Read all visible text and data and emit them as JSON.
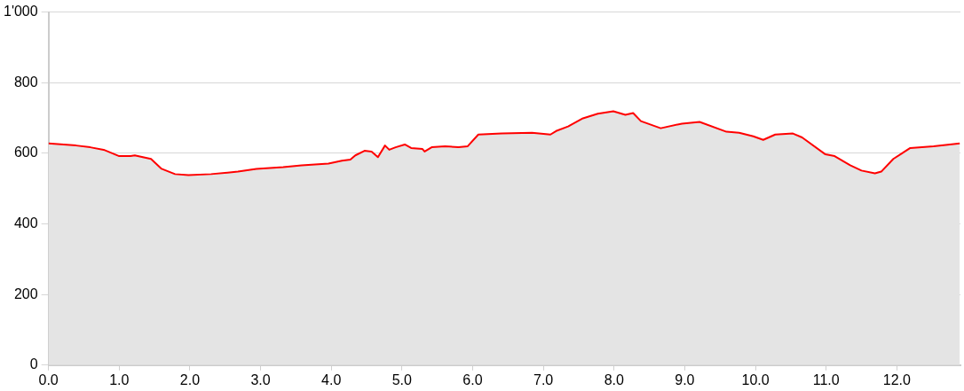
{
  "chart_data": {
    "type": "area",
    "x": [
      0.0,
      0.39,
      0.59,
      0.78,
      1.0,
      1.16,
      1.22,
      1.45,
      1.6,
      1.79,
      1.98,
      2.3,
      2.68,
      2.94,
      3.32,
      3.58,
      3.96,
      4.15,
      4.27,
      4.34,
      4.47,
      4.57,
      4.66,
      4.76,
      4.82,
      4.91,
      5.04,
      5.13,
      5.29,
      5.32,
      5.42,
      5.61,
      5.8,
      5.93,
      6.08,
      6.41,
      6.84,
      7.1,
      7.18,
      7.35,
      7.56,
      7.77,
      7.99,
      8.16,
      8.27,
      8.38,
      8.66,
      8.96,
      9.21,
      9.59,
      9.77,
      9.97,
      10.11,
      10.28,
      10.53,
      10.66,
      10.99,
      11.12,
      11.34,
      11.5,
      11.69,
      11.78,
      11.95,
      12.19,
      12.52,
      12.89
    ],
    "series": [
      {
        "color": "#ff0000",
        "values": [
          628,
          622,
          617,
          610,
          592,
          592,
          594,
          584,
          556,
          541,
          538,
          541,
          548,
          556,
          561,
          566,
          571,
          579,
          582,
          594,
          607,
          605,
          589,
          622,
          610,
          617,
          625,
          615,
          612,
          605,
          617,
          620,
          617,
          620,
          653,
          656,
          658,
          653,
          663,
          676,
          699,
          712,
          719,
          709,
          714,
          691,
          671,
          684,
          689,
          661,
          658,
          648,
          638,
          653,
          656,
          645,
          597,
          592,
          566,
          551,
          543,
          548,
          584,
          615,
          620,
          628
        ]
      }
    ],
    "xlim": [
      0,
      12.9
    ],
    "xticks": [
      {
        "value": 0,
        "label": "0.0"
      },
      {
        "value": 1,
        "label": "1.0"
      },
      {
        "value": 2,
        "label": "2.0"
      },
      {
        "value": 3,
        "label": "3.0"
      },
      {
        "value": 4,
        "label": "4.0"
      },
      {
        "value": 5,
        "label": "5.0"
      },
      {
        "value": 6,
        "label": "6.0"
      },
      {
        "value": 7,
        "label": "7.0"
      },
      {
        "value": 8,
        "label": "8.0"
      },
      {
        "value": 9,
        "label": "9.0"
      },
      {
        "value": 10,
        "label": "10.0"
      },
      {
        "value": 11,
        "label": "11.0"
      },
      {
        "value": 12,
        "label": "12.0"
      }
    ],
    "ylim": [
      0,
      1000
    ],
    "yticks": [
      0,
      200,
      400,
      600,
      800,
      {
        "value": 1000,
        "label": "1'000"
      }
    ],
    "grid": "y",
    "marker": "none",
    "line_style": "solid"
  }
}
